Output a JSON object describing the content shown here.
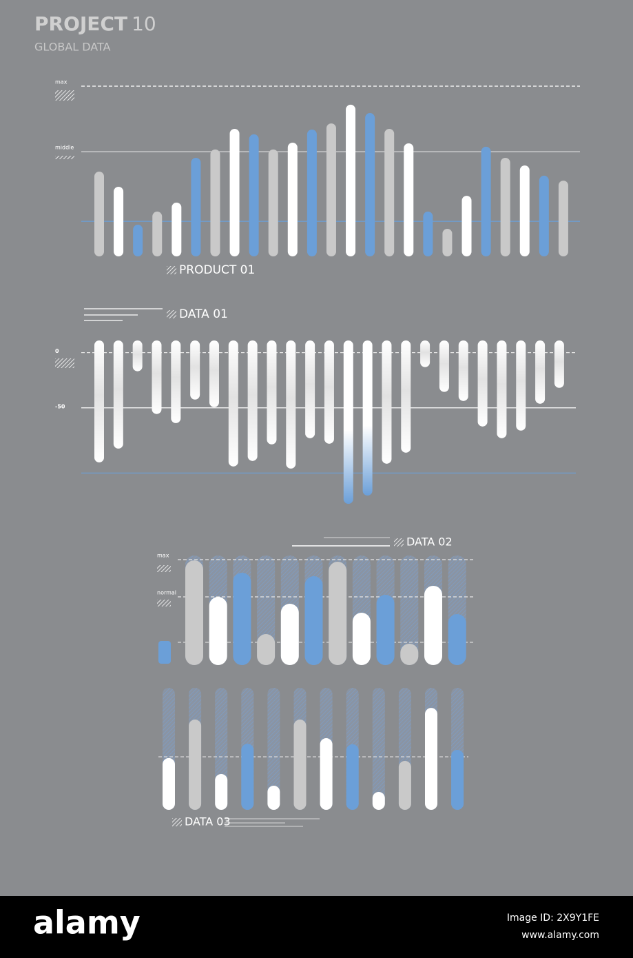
{
  "header": {
    "title": "PROJECT",
    "title_number": "10",
    "subtitle": "GLOBAL DATA"
  },
  "chart_data": [
    {
      "type": "bar",
      "title": "PRODUCT 01",
      "values": [
        49.8,
        40.9,
        18.6,
        26.3,
        31.6,
        57.9,
        62.8,
        74.9,
        71.7,
        62.8,
        66.8,
        74.5,
        78.1,
        89.1,
        84.2,
        74.9,
        66.4,
        26.3,
        16.2,
        35.6,
        64.4,
        57.9,
        53.4,
        47.4,
        44.5
      ],
      "colors": [
        "#c9c9c9",
        "#ffffff",
        "#6b9fd8",
        "#c9c9c9",
        "#ffffff",
        "#6b9fd8",
        "#c9c9c9",
        "#ffffff",
        "#6b9fd8",
        "#c9c9c9",
        "#ffffff",
        "#6b9fd8",
        "#c9c9c9",
        "#ffffff",
        "#6b9fd8",
        "#c9c9c9",
        "#ffffff",
        "#6b9fd8",
        "#c9c9c9",
        "#ffffff",
        "#6b9fd8",
        "#c9c9c9",
        "#ffffff",
        "#6b9fd8",
        "#c9c9c9"
      ],
      "ylim": [
        0,
        100
      ],
      "reference_lines": [
        {
          "value": 100,
          "label": "max",
          "style": "dashed",
          "color": "#ffffff"
        },
        {
          "value": 61.5,
          "label": "middle",
          "style": "solid",
          "color": "#d8d8d8"
        },
        {
          "value": 20.6,
          "style": "solid",
          "color": "#6b9fd8"
        }
      ]
    },
    {
      "type": "bar",
      "title": "DATA 01",
      "values": [
        -99.4,
        -86.9,
        -16.9,
        -55.6,
        -63.8,
        -42.5,
        -49.4,
        -103.1,
        -98.1,
        -83.1,
        -105,
        -77.5,
        -82.5,
        -136.9,
        -129.4,
        -100.6,
        -90.6,
        -13.1,
        -35.6,
        -43.8,
        -66.9,
        -77.5,
        -70.6,
        -46.3,
        -31.9
      ],
      "colors": [
        "#ffffff",
        "#ffffff",
        "#ffffff",
        "#ffffff",
        "#ffffff",
        "#ffffff",
        "#ffffff",
        "#ffffff",
        "#ffffff",
        "#ffffff",
        "#ffffff",
        "#ffffff",
        "#ffffff",
        "#6b9fd8",
        "#6b9fd8",
        "#ffffff",
        "#ffffff",
        "#ffffff",
        "#ffffff",
        "#ffffff",
        "#ffffff",
        "#ffffff",
        "#ffffff",
        "#ffffff",
        "#ffffff"
      ],
      "ylim": [
        -140,
        11
      ],
      "yticks": [
        0,
        -50
      ],
      "reference_lines": [
        {
          "value": 0,
          "style": "dashed",
          "color": "#e6e6e6"
        },
        {
          "value": -50,
          "style": "solid",
          "color": "#ffffff"
        },
        {
          "value": -109,
          "style": "solid",
          "color": "#6b9fd8"
        }
      ]
    },
    {
      "type": "bar",
      "title": "DATA 02",
      "values": [
        99.3,
        64.7,
        87.6,
        29.4,
        58.2,
        84.3,
        98,
        49.7,
        66.7,
        20.3,
        75.2,
        48.4
      ],
      "colors": [
        "#c9c9c9",
        "#ffffff",
        "#6b9fd8",
        "#c9c9c9",
        "#ffffff",
        "#6b9fd8",
        "#c9c9c9",
        "#ffffff",
        "#6b9fd8",
        "#c9c9c9",
        "#ffffff",
        "#6b9fd8"
      ],
      "ylim": [
        0,
        100
      ],
      "reference_lines": [
        {
          "value": 100,
          "label": "max",
          "style": "dashed",
          "color": "#e6e6e6"
        },
        {
          "value": 64.7,
          "label": "normal",
          "style": "dashed",
          "color": "#e6e6e6"
        },
        {
          "value": 21.6,
          "style": "dashed",
          "color": "#e6e6e6"
        }
      ]
    },
    {
      "type": "bar",
      "title": "DATA 03",
      "values": [
        43.9,
        76.6,
        30.4,
        56.1,
        20.5,
        76.6,
        60.8,
        55.6,
        15.2,
        41.5,
        86.5,
        50.9
      ],
      "colors": [
        "#ffffff",
        "#c9c9c9",
        "#ffffff",
        "#6b9fd8",
        "#ffffff",
        "#c9c9c9",
        "#ffffff",
        "#6b9fd8",
        "#ffffff",
        "#c9c9c9",
        "#ffffff",
        "#6b9fd8"
      ],
      "ylim": [
        0,
        100
      ],
      "reference_lines": [
        {
          "value": 45,
          "style": "dashed",
          "color": "#e6e6e6"
        }
      ]
    }
  ],
  "footer": {
    "brand": "alamy",
    "image_id": "Image ID: 2X9Y1FE",
    "url": "www.alamy.com"
  }
}
